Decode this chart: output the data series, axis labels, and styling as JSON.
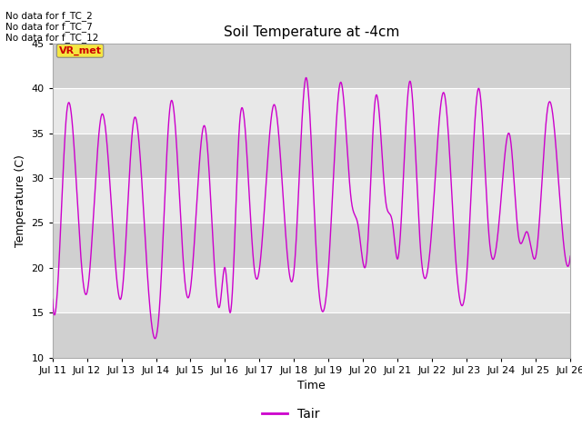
{
  "title": "Soil Temperature at -4cm",
  "xlabel": "Time",
  "ylabel": "Temperature (C)",
  "ylim": [
    10,
    45
  ],
  "background_light": "#e8e8e8",
  "background_dark": "#d0d0d0",
  "line_color": "#cc00cc",
  "legend_label": "Tair",
  "no_data_texts": [
    "No data for f_TC_2",
    "No data for f_TC_7",
    "No data for f_TC_12"
  ],
  "annotation_text": "VR_met",
  "annotation_bg": "#f5e642",
  "annotation_fg": "#cc0000",
  "x_tick_labels": [
    "Jul 11",
    "Jul 12",
    "Jul 13",
    "Jul 14",
    "Jul 15",
    "Jul 16",
    "Jul 17",
    "Jul 18",
    "Jul 19",
    "Jul 20",
    "Jul 21",
    "Jul 22",
    "Jul 23",
    "Jul 24",
    "Jul 25",
    "Jul 26"
  ],
  "yticks": [
    10,
    15,
    20,
    25,
    30,
    35,
    40,
    45
  ],
  "grid_color": "#ffffff",
  "title_fontsize": 11,
  "label_fontsize": 9,
  "tick_fontsize": 8
}
